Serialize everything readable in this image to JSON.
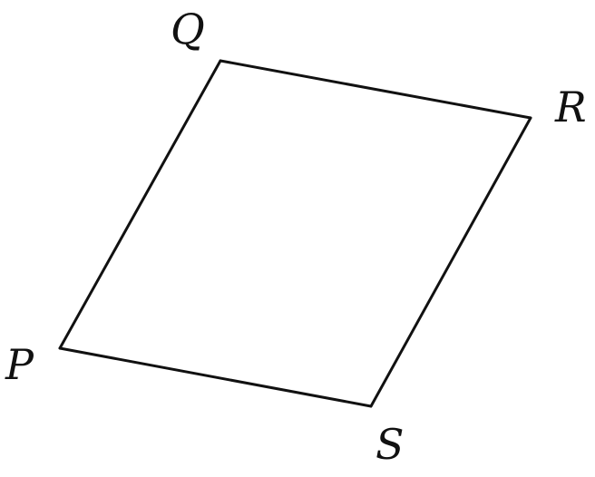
{
  "figure": {
    "shape": "parallelogram",
    "stroke_color": "#111111",
    "background_color": "#ffffff",
    "vertices": {
      "P": {
        "label": "P"
      },
      "Q": {
        "label": "Q"
      },
      "R": {
        "label": "R"
      },
      "S": {
        "label": "S"
      }
    },
    "edges": [
      {
        "from": "P",
        "to": "Q"
      },
      {
        "from": "Q",
        "to": "R"
      },
      {
        "from": "R",
        "to": "S"
      },
      {
        "from": "S",
        "to": "P"
      }
    ]
  }
}
